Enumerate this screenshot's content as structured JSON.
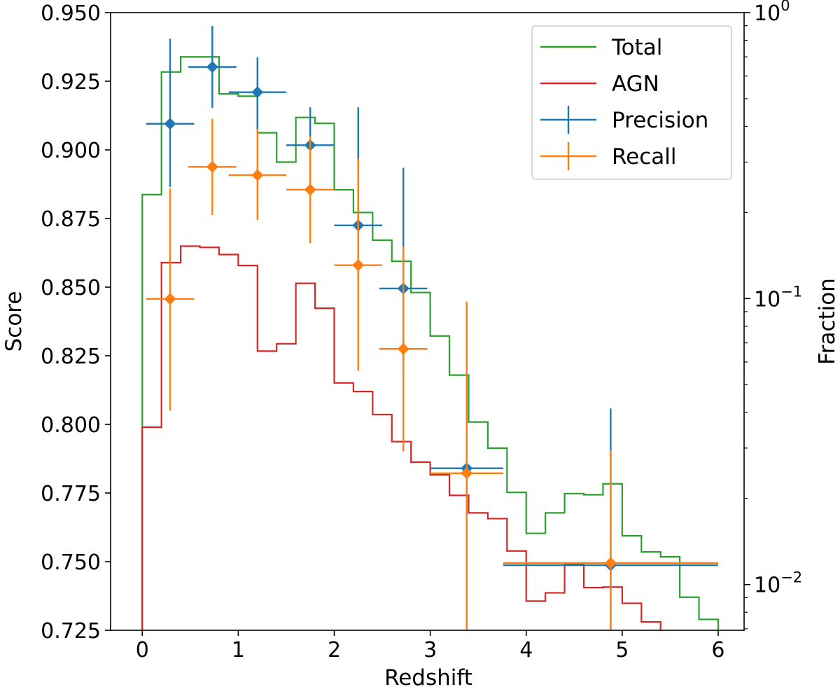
{
  "chart_data": {
    "type": "line",
    "xlabel": "Redshift",
    "ylabel": "Score",
    "y2label": "Fraction",
    "xlim": [
      -0.33,
      6.27
    ],
    "ylim": [
      0.725,
      0.95
    ],
    "y2lim_log10": [
      -2.16,
      0
    ],
    "xticks": [
      0,
      1,
      2,
      3,
      4,
      5,
      6
    ],
    "xtick_labels": [
      "0",
      "1",
      "2",
      "3",
      "4",
      "5",
      "6"
    ],
    "yticks": [
      0.725,
      0.75,
      0.775,
      0.8,
      0.825,
      0.85,
      0.875,
      0.9,
      0.925,
      0.95
    ],
    "ytick_labels": [
      "0.725",
      "0.750",
      "0.775",
      "0.800",
      "0.825",
      "0.850",
      "0.875",
      "0.900",
      "0.925",
      "0.950"
    ],
    "y2ticks": [
      {
        "base": "10",
        "exp": "0",
        "log10": 0
      },
      {
        "base": "10",
        "exp": "−1",
        "log10": -1
      },
      {
        "base": "10",
        "exp": "−2",
        "log10": -2
      }
    ],
    "legend": {
      "position": "top-right",
      "entries": [
        {
          "label": "Total",
          "color": "#2ca02c",
          "style": "line"
        },
        {
          "label": "AGN",
          "color": "#d62728",
          "style": "line"
        },
        {
          "label": "Precision",
          "color": "#1f77b4",
          "style": "errorbar"
        },
        {
          "label": "Recall",
          "color": "#ff7f0e",
          "style": "errorbar"
        }
      ]
    },
    "step_series": [
      {
        "name": "Total",
        "axis": "right-log",
        "color": "#2ca02c",
        "bin_edges": [
          0,
          0.2,
          0.4,
          0.6,
          0.8,
          1.0,
          1.2,
          1.4,
          1.6,
          1.8,
          2.0,
          2.2,
          2.4,
          2.6,
          2.8,
          3.0,
          3.2,
          3.4,
          3.6,
          3.8,
          4.0,
          4.2,
          4.4,
          4.6,
          4.8,
          5.0,
          5.2,
          5.4,
          5.6,
          5.8,
          6.0
        ],
        "values": [
          0.231,
          0.62,
          0.7,
          0.7,
          0.52,
          0.51,
          0.38,
          0.3,
          0.43,
          0.41,
          0.24,
          0.2,
          0.16,
          0.135,
          0.105,
          0.074,
          0.054,
          0.037,
          0.03,
          0.021,
          0.0151,
          0.0178,
          0.0208,
          0.0206,
          0.0225,
          0.0148,
          0.013,
          0.0125,
          0.00903,
          0.00755
        ]
      },
      {
        "name": "AGN",
        "axis": "right-log",
        "color": "#d62728",
        "bin_edges": [
          0,
          0.2,
          0.4,
          0.6,
          0.8,
          1.0,
          1.2,
          1.4,
          1.6,
          1.8,
          2.0,
          2.2,
          2.4,
          2.6,
          2.8,
          3.0,
          3.2,
          3.4,
          3.6,
          3.8,
          4.0,
          4.2,
          4.4,
          4.6,
          4.8,
          5.0,
          5.2,
          5.4
        ],
        "values": [
          0.0355,
          0.1335,
          0.1525,
          0.151,
          0.1425,
          0.1305,
          0.0655,
          0.0695,
          0.113,
          0.0925,
          0.0507,
          0.0473,
          0.0393,
          0.0316,
          0.0268,
          0.0242,
          0.0205,
          0.0178,
          0.017,
          0.0131,
          0.00875,
          0.00935,
          0.01175,
          0.00975,
          0.0098,
          0.0086,
          0.0074
        ]
      }
    ],
    "errorbar_series": [
      {
        "name": "Precision",
        "axis": "left",
        "color": "#1f77b4",
        "points": [
          {
            "x": 0.29,
            "y": 0.9095,
            "xerr": 0.25,
            "ylo": 0.8865,
            "yhi": 0.9405
          },
          {
            "x": 0.73,
            "y": 0.9302,
            "xerr": 0.25,
            "ylo": 0.9152,
            "yhi": 0.9452
          },
          {
            "x": 1.2,
            "y": 0.921,
            "xerr": 0.3,
            "ylo": 0.9075,
            "yhi": 0.9337
          },
          {
            "x": 1.75,
            "y": 0.9017,
            "xerr": 0.25,
            "ylo": 0.8877,
            "yhi": 0.9155
          },
          {
            "x": 2.25,
            "y": 0.8725,
            "xerr": 0.25,
            "ylo": 0.8525,
            "yhi": 0.9155
          },
          {
            "x": 2.72,
            "y": 0.8495,
            "xerr": 0.25,
            "ylo": 0.8215,
            "yhi": 0.8935
          },
          {
            "x": 3.38,
            "y": 0.784,
            "xerr": 0.38,
            "ylo": 0.725,
            "yhi": 0.843
          },
          {
            "x": 4.88,
            "y": 0.7487,
            "xerr": 1.12,
            "ylo": 0.725,
            "yhi": 0.8058
          }
        ]
      },
      {
        "name": "Recall",
        "axis": "left",
        "color": "#ff7f0e",
        "points": [
          {
            "x": 0.29,
            "y": 0.8457,
            "xerr": 0.25,
            "ylo": 0.805,
            "yhi": 0.886
          },
          {
            "x": 0.73,
            "y": 0.8938,
            "xerr": 0.25,
            "ylo": 0.8763,
            "yhi": 0.9113
          },
          {
            "x": 1.2,
            "y": 0.8908,
            "xerr": 0.3,
            "ylo": 0.8745,
            "yhi": 0.9075
          },
          {
            "x": 1.75,
            "y": 0.8855,
            "xerr": 0.25,
            "ylo": 0.866,
            "yhi": 0.905
          },
          {
            "x": 2.25,
            "y": 0.858,
            "xerr": 0.25,
            "ylo": 0.8195,
            "yhi": 0.8968
          },
          {
            "x": 2.72,
            "y": 0.8275,
            "xerr": 0.25,
            "ylo": 0.7902,
            "yhi": 0.8648
          },
          {
            "x": 3.38,
            "y": 0.7822,
            "xerr": 0.38,
            "ylo": 0.725,
            "yhi": 0.8447
          },
          {
            "x": 4.88,
            "y": 0.7495,
            "xerr": 1.12,
            "ylo": 0.725,
            "yhi": 0.7905
          }
        ]
      }
    ]
  }
}
